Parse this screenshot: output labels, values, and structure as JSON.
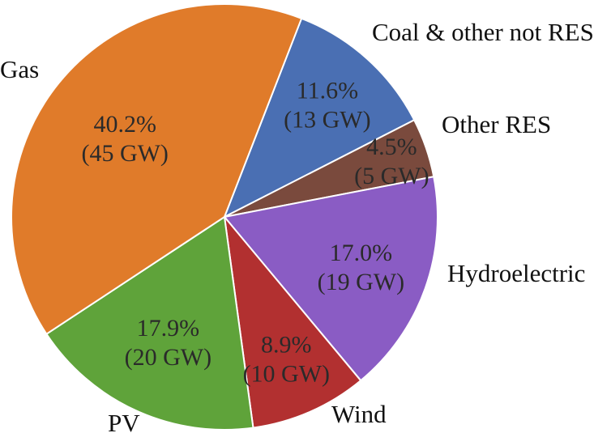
{
  "chart_data": {
    "type": "pie",
    "slices": [
      {
        "label": "Coal & other not RES",
        "percent": 11.6,
        "percent_label": "11.6%",
        "value_label": "(13 GW)",
        "value_gw": 13,
        "color": "#4a6fb3"
      },
      {
        "label": "Other RES",
        "percent": 4.5,
        "percent_label": "4.5%",
        "value_label": "(5 GW)",
        "value_gw": 5,
        "color": "#7a4a3d"
      },
      {
        "label": "Hydroelectric",
        "percent": 17.0,
        "percent_label": "17.0%",
        "value_label": "(19 GW)",
        "value_gw": 19,
        "color": "#8a5cc4"
      },
      {
        "label": "Wind",
        "percent": 8.9,
        "percent_label": "8.9%",
        "value_label": "(10 GW)",
        "value_gw": 10,
        "color": "#b23030"
      },
      {
        "label": "PV",
        "percent": 17.9,
        "percent_label": "17.9%",
        "value_label": "(20 GW)",
        "value_gw": 20,
        "color": "#5fa33a"
      },
      {
        "label": "Gas",
        "percent": 40.2,
        "percent_label": "40.2%",
        "value_label": "(45 GW)",
        "value_gw": 45,
        "color": "#e07b2a"
      }
    ]
  }
}
